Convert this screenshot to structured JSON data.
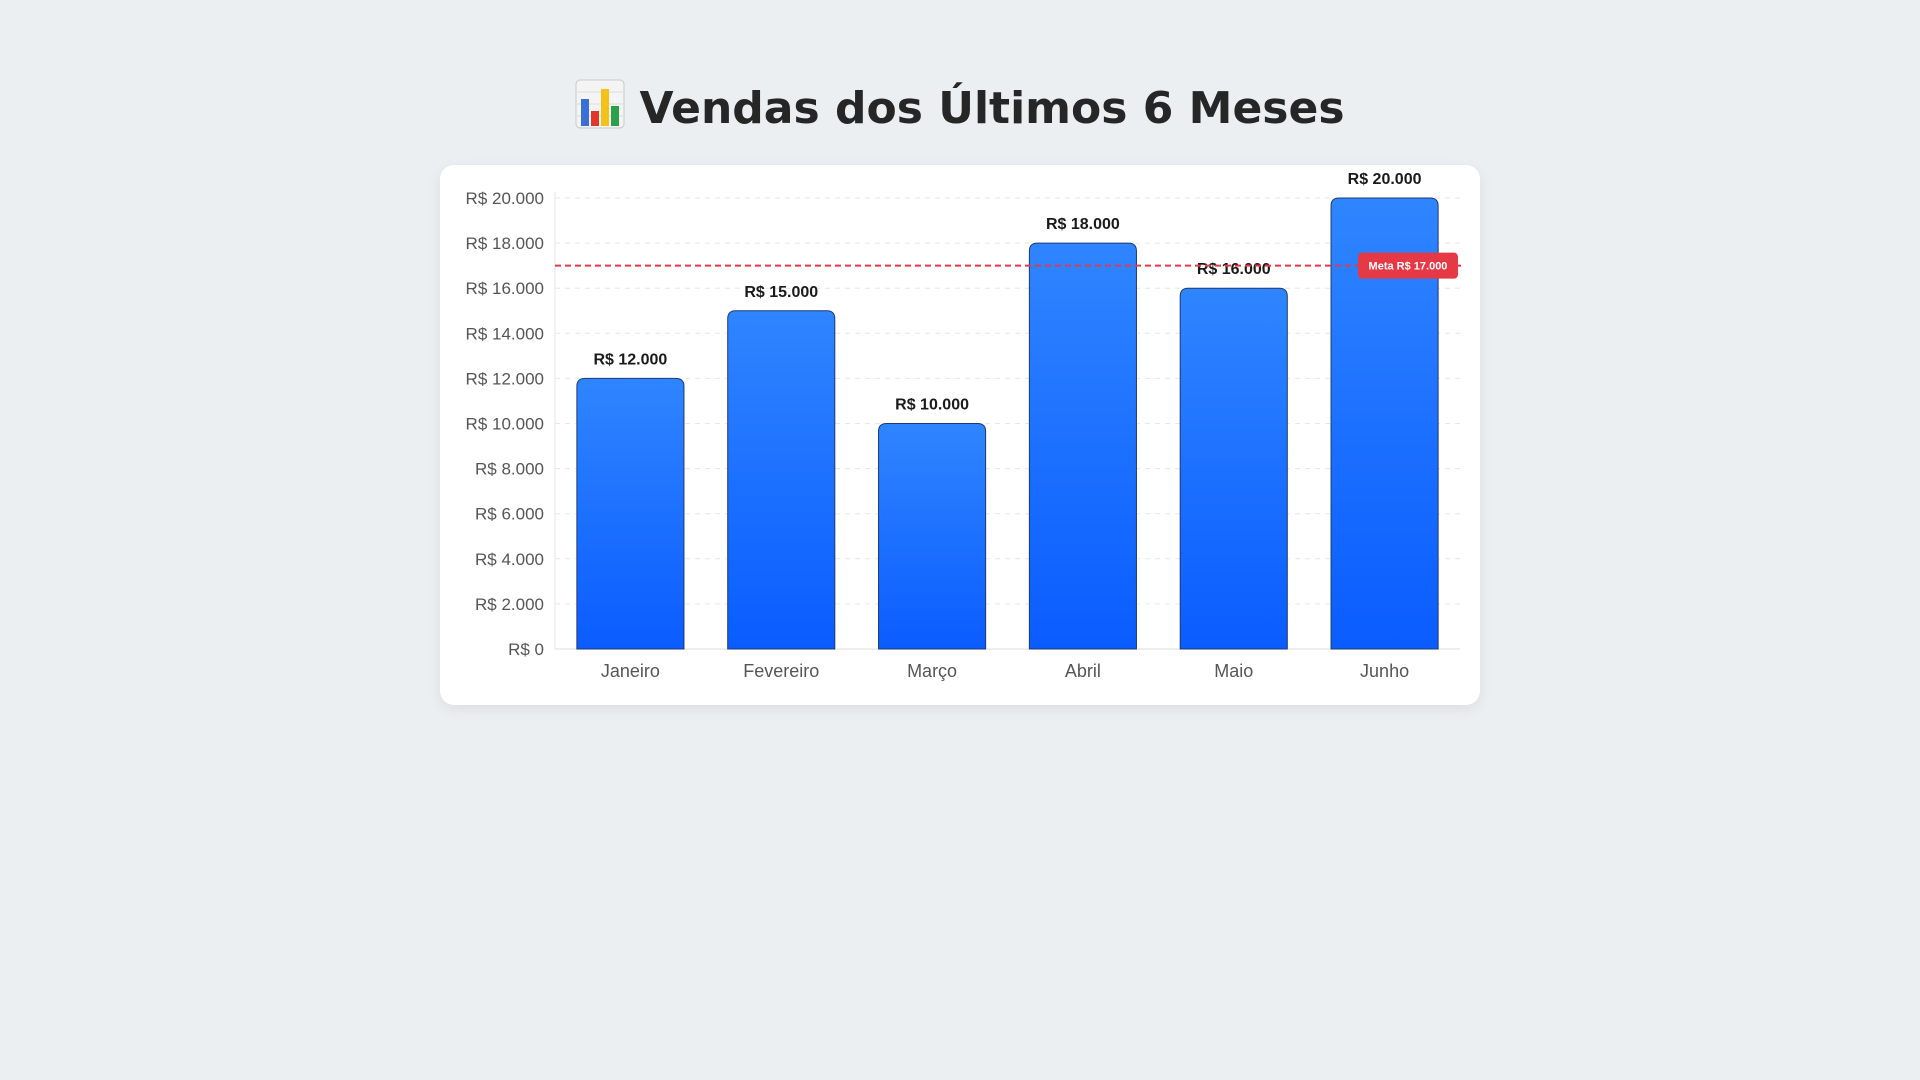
{
  "page": {
    "title": "Vendas dos Últimos 6 Meses",
    "title_icon": "bar-chart-icon"
  },
  "chart_data": {
    "type": "bar",
    "title": "",
    "xlabel": "",
    "ylabel": "",
    "categories": [
      "Janeiro",
      "Fevereiro",
      "Março",
      "Abril",
      "Maio",
      "Junho"
    ],
    "values": [
      12000,
      15000,
      10000,
      18000,
      16000,
      20000
    ],
    "data_labels": [
      "R$ 12.000",
      "R$ 15.000",
      "R$ 10.000",
      "R$ 18.000",
      "R$ 16.000",
      "R$ 20.000"
    ],
    "ylim": [
      0,
      20000
    ],
    "yticks": [
      0,
      2000,
      4000,
      6000,
      8000,
      10000,
      12000,
      14000,
      16000,
      18000,
      20000
    ],
    "ytick_labels": [
      "R$ 0",
      "R$ 2.000",
      "R$ 4.000",
      "R$ 6.000",
      "R$ 8.000",
      "R$ 10.000",
      "R$ 12.000",
      "R$ 14.000",
      "R$ 16.000",
      "R$ 18.000",
      "R$ 20.000"
    ],
    "target_line": {
      "value": 17000,
      "label": "Meta R$ 17.000",
      "color": "#e63946"
    },
    "grid": true,
    "legend": "none",
    "colors": {
      "bar_top": "#2f85ff",
      "bar_bottom": "#0a5cff",
      "bar_border": "#1f3a70"
    }
  }
}
